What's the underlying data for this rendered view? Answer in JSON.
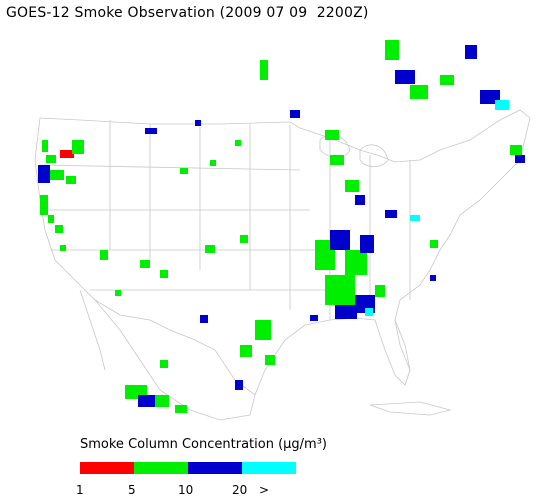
{
  "title": "GOES-12 Smoke Observation (2009 07 09  2200Z)",
  "legend": {
    "title": "Smoke Column Concentration (μg/m³)",
    "colors": [
      "#ff0000",
      "#00ee00",
      "#0000cc",
      "#00ffff"
    ],
    "ticks": [
      "1",
      "5",
      "10",
      "20",
      ">"
    ]
  },
  "map": {
    "region": "Contiguous United States",
    "colors": {
      "land_border": "#b4b4b4"
    }
  }
}
